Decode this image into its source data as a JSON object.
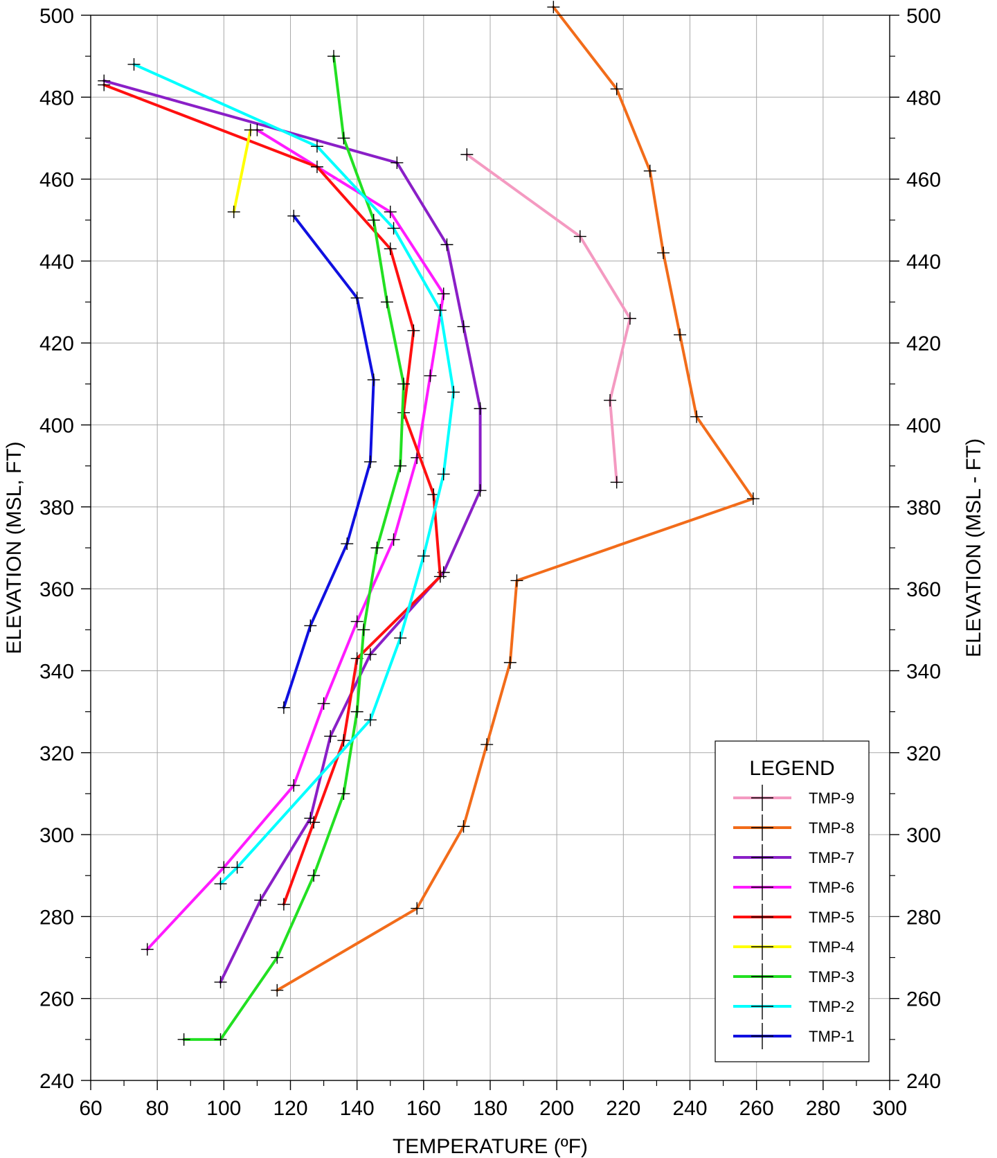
{
  "chart_data": {
    "type": "line",
    "xlabel": "TEMPERATURE (ºF)",
    "ylabel": "ELEVATION (MSL, FT)",
    "ylabel_right": "ELEVATION (MSL - FT)",
    "xlim": [
      60,
      300
    ],
    "ylim": [
      240,
      500
    ],
    "x_ticks": [
      60,
      80,
      100,
      120,
      140,
      160,
      180,
      200,
      220,
      240,
      260,
      280,
      300
    ],
    "y_ticks": [
      240,
      260,
      280,
      300,
      320,
      340,
      360,
      380,
      400,
      420,
      440,
      460,
      480,
      500
    ],
    "grid": true,
    "legend": {
      "title": "LEGEND",
      "position": "bottom-right"
    },
    "series": [
      {
        "name": "TMP-9",
        "color": "#F49AC1",
        "points": [
          [
            173,
            466
          ],
          [
            207,
            446
          ],
          [
            222,
            426
          ],
          [
            216,
            406
          ],
          [
            218,
            386
          ]
        ]
      },
      {
        "name": "TMP-8",
        "color": "#F26C1A",
        "points": [
          [
            199,
            502
          ],
          [
            218,
            482
          ],
          [
            228,
            462
          ],
          [
            232,
            442
          ],
          [
            237,
            422
          ],
          [
            242,
            402
          ],
          [
            259,
            382
          ],
          [
            188,
            362
          ],
          [
            186,
            342
          ],
          [
            179,
            322
          ],
          [
            172,
            302
          ],
          [
            158,
            282
          ],
          [
            116,
            262
          ]
        ]
      },
      {
        "name": "TMP-7",
        "color": "#8A1FC7",
        "points": [
          [
            64,
            484
          ],
          [
            152,
            464
          ],
          [
            167,
            444
          ],
          [
            172,
            424
          ],
          [
            177,
            404
          ],
          [
            177,
            384
          ],
          [
            166,
            364
          ],
          [
            144,
            344
          ],
          [
            132,
            324
          ],
          [
            126,
            304
          ],
          [
            111,
            284
          ],
          [
            99,
            264
          ]
        ]
      },
      {
        "name": "TMP-6",
        "color": "#FF1BFF",
        "points": [
          [
            110,
            472
          ],
          [
            150,
            452
          ],
          [
            166,
            432
          ],
          [
            162,
            412
          ],
          [
            158,
            392
          ],
          [
            151,
            372
          ],
          [
            140,
            352
          ],
          [
            130,
            332
          ],
          [
            121,
            312
          ],
          [
            100,
            292
          ],
          [
            77,
            272
          ]
        ]
      },
      {
        "name": "TMP-5",
        "color": "#FF1010",
        "points": [
          [
            64,
            483
          ],
          [
            128,
            463
          ],
          [
            150,
            443
          ],
          [
            157,
            423
          ],
          [
            154,
            403
          ],
          [
            163,
            383
          ],
          [
            165,
            363
          ],
          [
            140,
            343
          ],
          [
            136,
            323
          ],
          [
            127,
            303
          ],
          [
            118,
            283
          ]
        ]
      },
      {
        "name": "TMP-4",
        "color": "#FFFF00",
        "points": [
          [
            108,
            472
          ],
          [
            103,
            452
          ]
        ]
      },
      {
        "name": "TMP-3",
        "color": "#22E022",
        "points": [
          [
            133,
            490
          ],
          [
            136,
            470
          ],
          [
            145,
            450
          ],
          [
            149,
            430
          ],
          [
            154,
            410
          ],
          [
            153,
            390
          ],
          [
            146,
            370
          ],
          [
            142,
            350
          ],
          [
            140,
            330
          ],
          [
            136,
            310
          ],
          [
            127,
            290
          ],
          [
            116,
            270
          ],
          [
            99,
            250
          ],
          [
            88,
            250
          ]
        ]
      },
      {
        "name": "TMP-2",
        "color": "#00FFFF",
        "points": [
          [
            73,
            488
          ],
          [
            128,
            468
          ],
          [
            151,
            448
          ],
          [
            165,
            428
          ],
          [
            169,
            408
          ],
          [
            166,
            388
          ],
          [
            160,
            368
          ],
          [
            153,
            348
          ],
          [
            144,
            328
          ],
          [
            104,
            292
          ],
          [
            99,
            288
          ]
        ]
      },
      {
        "name": "TMP-1",
        "color": "#1010E0",
        "points": [
          [
            121,
            451
          ],
          [
            140,
            431
          ],
          [
            145,
            411
          ],
          [
            144,
            391
          ],
          [
            137,
            371
          ],
          [
            126,
            351
          ],
          [
            118,
            331
          ]
        ]
      }
    ]
  }
}
